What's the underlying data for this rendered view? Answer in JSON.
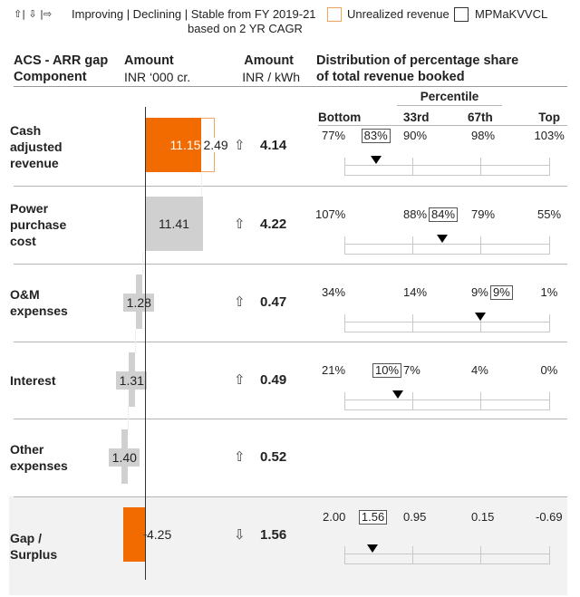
{
  "legend": {
    "arrows": "⇧| ⇩ |⇨",
    "trend_text": "Improving | Declining | Stable from FY 2019-21",
    "trend_text2": "based on 2 YR CAGR",
    "unrealized_label": "Unrealized revenue",
    "utility_label": "MPMaKVVCL",
    "unrealized_color": "#f5a25d",
    "utility_color": "#333333"
  },
  "header": {
    "component_1": "ACS - ARR gap",
    "component_2": "Component",
    "amount_1": "Amount",
    "amount_2": "INR ‘000 cr.",
    "kwh_1": "Amount",
    "kwh_2": "INR / kWh",
    "dist_1": "Distribution of percentage share",
    "dist_2": "of total revenue booked",
    "percentile": "Percentile",
    "bottom": "Bottom",
    "p33": "33rd",
    "p67": "67th",
    "top": "Top"
  },
  "colors": {
    "orange": "#f26b00",
    "gray": "#d0d0d0",
    "highlight_bg": "#f2f2f2"
  },
  "rows": [
    {
      "name": "Cash adjusted revenue",
      "amount": "11.15",
      "unrealized": "2.49",
      "trend": "up",
      "trend_icon": "⇧",
      "per_kwh": "4.14",
      "bar_type": "orange",
      "percentiles": [
        "77%",
        "90%",
        "98%",
        "103%"
      ],
      "marker": "83%"
    },
    {
      "name": "Power purchase cost",
      "amount": "11.41",
      "trend": "up",
      "trend_icon": "⇧",
      "per_kwh": "4.22",
      "bar_type": "gray",
      "percentiles": [
        "107%",
        "88%",
        "79%",
        "55%"
      ],
      "marker": "84%"
    },
    {
      "name": "O&M expenses",
      "amount": "1.28",
      "trend": "up",
      "trend_icon": "⇧",
      "per_kwh": "0.47",
      "bar_type": "gray",
      "percentiles": [
        "34%",
        "14%",
        "9%",
        "1%"
      ],
      "marker": "9%"
    },
    {
      "name": "Interest",
      "amount": "1.31",
      "trend": "up",
      "trend_icon": "⇧",
      "per_kwh": "0.49",
      "bar_type": "gray",
      "percentiles": [
        "21%",
        "7%",
        "4%",
        "0%"
      ],
      "marker": "10%"
    },
    {
      "name": "Other expenses",
      "amount": "1.40",
      "trend": "up",
      "trend_icon": "⇧",
      "per_kwh": "0.52",
      "bar_type": "gray"
    },
    {
      "name": "Gap / Surplus",
      "amount": "-4.25",
      "amount_label": "4.25",
      "trend": "down",
      "trend_icon": "⇩",
      "per_kwh": "1.56",
      "bar_type": "orange",
      "highlight": true,
      "percentiles": [
        "2.00",
        "0.95",
        "0.15",
        "-0.69"
      ],
      "marker": "1.56"
    }
  ]
}
